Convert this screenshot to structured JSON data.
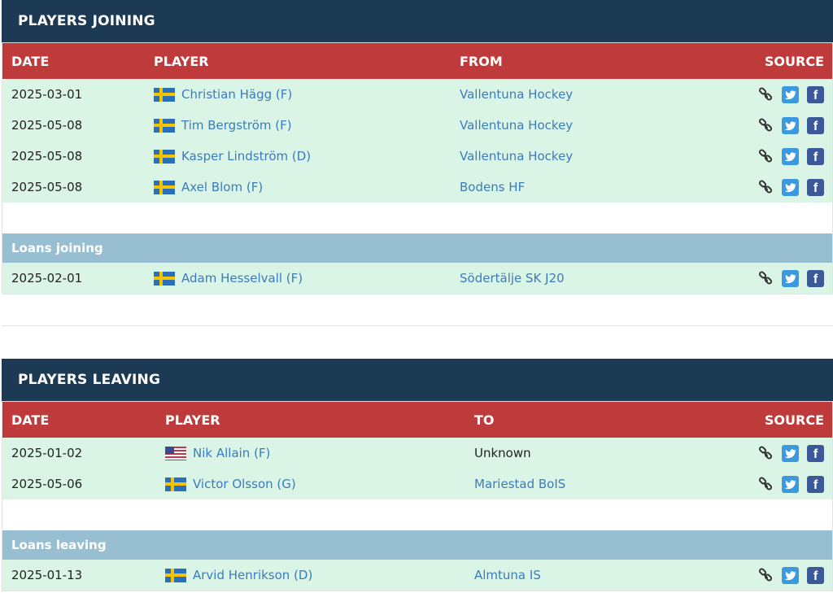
{
  "joining": {
    "title": "PLAYERS JOINING",
    "columns": {
      "date": "DATE",
      "player": "PLAYER",
      "club": "FROM",
      "source": "SOURCE"
    },
    "rows": [
      {
        "date": "2025-03-01",
        "flag": "sweden-flag",
        "player": "Christian Hägg (F)",
        "club": "Vallentuna Hockey"
      },
      {
        "date": "2025-05-08",
        "flag": "sweden-flag",
        "player": "Tim Bergström (F)",
        "club": "Vallentuna Hockey"
      },
      {
        "date": "2025-05-08",
        "flag": "sweden-flag",
        "player": "Kasper Lindström (D)",
        "club": "Vallentuna Hockey"
      },
      {
        "date": "2025-05-08",
        "flag": "sweden-flag",
        "player": "Axel Blom (F)",
        "club": "Bodens HF"
      }
    ],
    "loans_title": "Loans joining",
    "loans": [
      {
        "date": "2025-02-01",
        "flag": "sweden-flag",
        "player": "Adam Hesselvall (F)",
        "club": "Södertälje SK J20"
      }
    ]
  },
  "leaving": {
    "title": "PLAYERS LEAVING",
    "columns": {
      "date": "DATE",
      "player": "PLAYER",
      "club": "TO",
      "source": "SOURCE"
    },
    "rows": [
      {
        "date": "2025-01-02",
        "flag": "usa-flag",
        "player": "Nik Allain (F)",
        "club": "Unknown"
      },
      {
        "date": "2025-05-06",
        "flag": "sweden-flag",
        "player": "Victor Olsson (G)",
        "club": "Mariestad BoIS"
      }
    ],
    "loans_title": "Loans leaving",
    "loans": [
      {
        "date": "2025-01-13",
        "flag": "sweden-flag",
        "player": "Arvid Henrikson (D)",
        "club": "Almtuna IS"
      }
    ]
  },
  "source_icons": [
    "link-icon",
    "twitter-icon",
    "facebook-icon"
  ],
  "colors": {
    "title_bar": "#1d3a54",
    "header_row": "#bf3b3b",
    "row_bg": "#daf5e6",
    "loans_bar": "#97bfd1",
    "link_text": "#3a7bbf"
  }
}
